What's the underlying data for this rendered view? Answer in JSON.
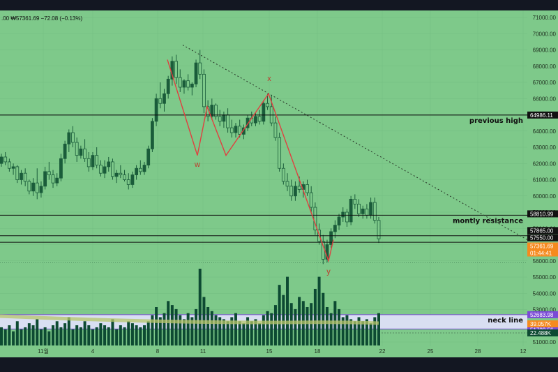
{
  "header": {
    "prefix": ".00",
    "price_text": "₩57361.69",
    "change_text": "−72.08 (−0.13%)"
  },
  "chart_data": {
    "type": "candlestick",
    "y_range": [
      50500,
      71500
    ],
    "y_ticks": [
      51000,
      52000,
      53000,
      54000,
      55000,
      56000,
      57000,
      58000,
      59000,
      60000,
      61000,
      62000,
      63000,
      64000,
      65000,
      66000,
      67000,
      68000,
      69000,
      70000,
      71000
    ],
    "x_ticks": [
      "11월",
      "4",
      "8",
      "11",
      "15",
      "18",
      "22",
      "25",
      "28",
      "12"
    ],
    "candles": [
      [
        62000,
        62600,
        61800,
        62400
      ],
      [
        62400,
        62700,
        61900,
        62100
      ],
      [
        62100,
        62300,
        61500,
        61700
      ],
      [
        61700,
        62000,
        61300,
        61800
      ],
      [
        61800,
        61900,
        60800,
        61000
      ],
      [
        61000,
        61600,
        60700,
        61400
      ],
      [
        61400,
        61700,
        60600,
        60900
      ],
      [
        60900,
        61000,
        60100,
        60300
      ],
      [
        60300,
        61100,
        60000,
        60800
      ],
      [
        60800,
        61700,
        59800,
        60200
      ],
      [
        60200,
        60900,
        59900,
        60600
      ],
      [
        60600,
        61800,
        60400,
        61500
      ],
      [
        61500,
        62100,
        61000,
        61300
      ],
      [
        61300,
        61600,
        60500,
        60800
      ],
      [
        60800,
        61400,
        60600,
        61100
      ],
      [
        61100,
        62600,
        60900,
        62300
      ],
      [
        62300,
        63400,
        62000,
        63200
      ],
      [
        63200,
        64100,
        62700,
        63900
      ],
      [
        63900,
        64300,
        63000,
        63300
      ],
      [
        63300,
        63600,
        62100,
        62500
      ],
      [
        62500,
        63100,
        62300,
        62900
      ],
      [
        62900,
        63500,
        62100,
        62300
      ],
      [
        62300,
        62700,
        61500,
        61800
      ],
      [
        61800,
        62700,
        61600,
        62500
      ],
      [
        62500,
        63000,
        61700,
        61900
      ],
      [
        61900,
        62200,
        61200,
        61400
      ],
      [
        61400,
        62200,
        61100,
        61800
      ],
      [
        61800,
        62400,
        61500,
        62100
      ],
      [
        62100,
        62300,
        61000,
        61200
      ],
      [
        61200,
        61600,
        60800,
        61400
      ],
      [
        61400,
        61900,
        61100,
        61300
      ],
      [
        61300,
        61600,
        60900,
        61000
      ],
      [
        61000,
        61400,
        60400,
        60700
      ],
      [
        60700,
        61500,
        60500,
        61300
      ],
      [
        61300,
        61900,
        61000,
        61700
      ],
      [
        61700,
        62200,
        61300,
        61500
      ],
      [
        61500,
        62100,
        61300,
        61900
      ],
      [
        61900,
        63100,
        61700,
        62900
      ],
      [
        62900,
        64800,
        62700,
        64600
      ],
      [
        64600,
        66300,
        64300,
        66000
      ],
      [
        66000,
        67000,
        65400,
        65700
      ],
      [
        65700,
        66600,
        65200,
        66300
      ],
      [
        66300,
        67400,
        66000,
        67200
      ],
      [
        67200,
        68600,
        66800,
        68300
      ],
      [
        68300,
        68700,
        66900,
        67300
      ],
      [
        67300,
        67800,
        66400,
        66700
      ],
      [
        66700,
        67200,
        66300,
        67100
      ],
      [
        67100,
        67500,
        66500,
        66700
      ],
      [
        66700,
        67000,
        66200,
        66900
      ],
      [
        66900,
        68400,
        66700,
        68200
      ],
      [
        68200,
        69000,
        67200,
        67500
      ],
      [
        67500,
        67800,
        65100,
        65500
      ],
      [
        65500,
        65900,
        64600,
        64900
      ],
      [
        64900,
        66000,
        64700,
        65600
      ],
      [
        65600,
        65700,
        64700,
        64900
      ],
      [
        64900,
        65300,
        64300,
        64600
      ],
      [
        64600,
        65200,
        64200,
        65000
      ],
      [
        65000,
        65400,
        63900,
        64200
      ],
      [
        64200,
        64700,
        63600,
        63900
      ],
      [
        63900,
        64500,
        63600,
        64300
      ],
      [
        64300,
        64700,
        63600,
        63800
      ],
      [
        63800,
        64400,
        63500,
        64200
      ],
      [
        64200,
        65000,
        64000,
        64800
      ],
      [
        64800,
        65200,
        64300,
        64500
      ],
      [
        64500,
        65100,
        64300,
        64900
      ],
      [
        64900,
        65300,
        64400,
        64600
      ],
      [
        64600,
        65900,
        64400,
        65700
      ],
      [
        65700,
        66300,
        65300,
        65500
      ],
      [
        65500,
        66200,
        64300,
        64500
      ],
      [
        64500,
        64900,
        63400,
        63600
      ],
      [
        63600,
        63900,
        61500,
        61700
      ],
      [
        61700,
        62000,
        60700,
        60900
      ],
      [
        60900,
        61400,
        60300,
        60600
      ],
      [
        60600,
        61000,
        59700,
        60000
      ],
      [
        60000,
        60900,
        59700,
        60600
      ],
      [
        60600,
        61200,
        60200,
        60400
      ],
      [
        60400,
        60900,
        59900,
        60700
      ],
      [
        60700,
        61000,
        60000,
        60200
      ],
      [
        60200,
        60600,
        59000,
        59300
      ],
      [
        59300,
        59600,
        57600,
        57900
      ],
      [
        57900,
        58300,
        57000,
        57200
      ],
      [
        57200,
        57600,
        55800,
        56100
      ],
      [
        56100,
        57300,
        55900,
        57000
      ],
      [
        57000,
        58000,
        56800,
        57800
      ],
      [
        57800,
        58500,
        57400,
        58200
      ],
      [
        58200,
        58900,
        57900,
        58700
      ],
      [
        58700,
        59300,
        58400,
        59000
      ],
      [
        59000,
        59200,
        58100,
        58400
      ],
      [
        58400,
        60000,
        58200,
        59800
      ],
      [
        59800,
        60100,
        59200,
        59500
      ],
      [
        59500,
        59800,
        58700,
        58900
      ],
      [
        58900,
        59400,
        58600,
        59200
      ],
      [
        59200,
        59500,
        58600,
        58800
      ],
      [
        58800,
        59900,
        58600,
        59600
      ],
      [
        59600,
        59900,
        58300,
        58500
      ],
      [
        58500,
        58700,
        57100,
        57360
      ]
    ],
    "volumes": [
      9,
      8,
      10,
      7,
      12,
      8,
      9,
      11,
      10,
      13,
      8,
      9,
      7,
      10,
      12,
      9,
      11,
      14,
      8,
      10,
      9,
      12,
      10,
      8,
      9,
      11,
      10,
      9,
      13,
      8,
      10,
      9,
      12,
      11,
      10,
      9,
      10,
      12,
      15,
      19,
      14,
      16,
      22,
      20,
      18,
      15,
      13,
      16,
      14,
      18,
      38,
      24,
      19,
      17,
      15,
      14,
      13,
      12,
      14,
      16,
      12,
      11,
      14,
      12,
      13,
      11,
      15,
      17,
      16,
      20,
      30,
      25,
      34,
      21,
      18,
      24,
      22,
      19,
      21,
      28,
      34,
      26,
      19,
      16,
      22,
      18,
      14,
      15,
      13,
      12,
      14,
      12,
      13,
      11,
      14,
      16
    ],
    "volume_ma": "39.057K",
    "volume_last": "22.488K",
    "wave_labels": [
      "w",
      "x",
      "y"
    ],
    "levels": [
      {
        "label": "previous high",
        "value": 64986.11,
        "tag": "64986.11"
      },
      {
        "label": "montly resistance",
        "value": 57865.0,
        "tag": "57865.00"
      },
      {
        "label": "",
        "value": 58810.99,
        "tag": "58810.99"
      },
      {
        "label": "",
        "value": 57550.0,
        "tag": "57550.00"
      },
      {
        "label": "",
        "value": 52683.98,
        "tag": "52683.98"
      },
      {
        "label": "neck line",
        "value": 51799.56,
        "tag": "51799.56"
      }
    ],
    "last_price": "57361.69",
    "countdown": "01:44:41",
    "colors": {
      "background": "#7ec98a",
      "candle": "#1a5c3a",
      "volume": "#0d4a32",
      "wave": "#e04040",
      "neck_zone": "#d9dff2",
      "neck_border": "#7a4ad6",
      "price_tag": "#f58a1f",
      "label_tag": "#111111"
    }
  }
}
